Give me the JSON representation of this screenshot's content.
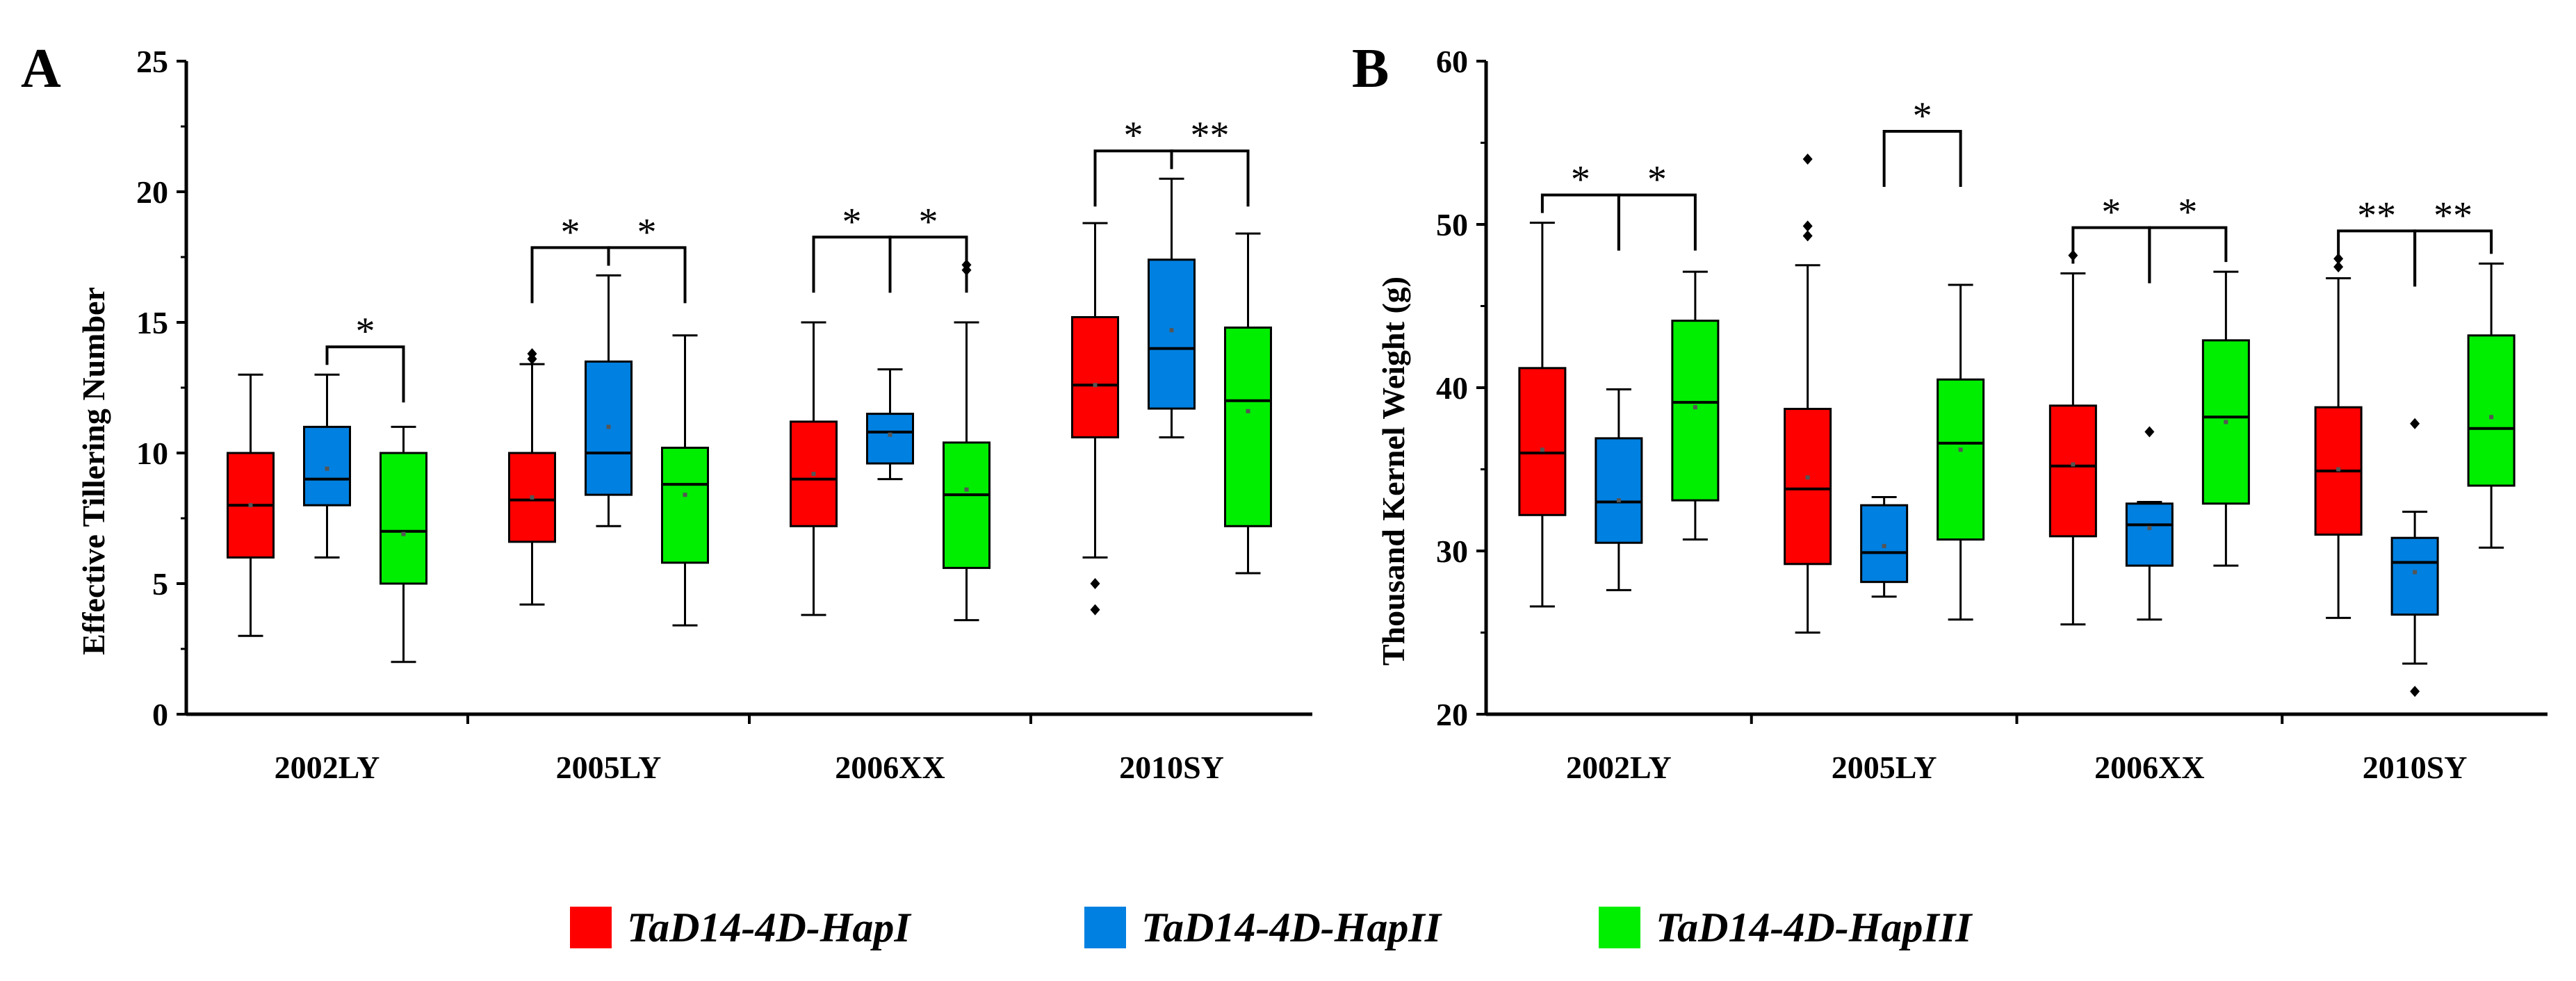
{
  "colors": {
    "hap1": "#ff0000",
    "hap2": "#0080e0",
    "hap3": "#00ee00"
  },
  "legend": [
    {
      "label": "TaD14-4D-HapI",
      "color": "#ff0000"
    },
    {
      "label": "TaD14-4D-HapII",
      "color": "#0080e0"
    },
    {
      "label": "TaD14-4D-HapIII",
      "color": "#00ee00"
    }
  ],
  "chart_data": [
    {
      "panel": "A",
      "type": "box",
      "ylabel": "Effective Tillering Number",
      "ylim": [
        0,
        25
      ],
      "yticks": [
        0,
        5,
        10,
        15,
        20,
        25
      ],
      "categories": [
        "2002LY",
        "2005LY",
        "2006XX",
        "2010SY"
      ],
      "series_names": [
        "TaD14-4D-HapI",
        "TaD14-4D-HapII",
        "TaD14-4D-HapIII"
      ],
      "boxes": [
        [
          {
            "min": 3,
            "q1": 6,
            "median": 8,
            "q3": 10,
            "max": 13,
            "mean": 8,
            "outliers": []
          },
          {
            "min": 6,
            "q1": 8,
            "median": 9,
            "q3": 11,
            "max": 13,
            "mean": 9.4,
            "outliers": []
          },
          {
            "min": 2,
            "q1": 5,
            "median": 7,
            "q3": 10,
            "max": 11,
            "mean": 6.9,
            "outliers": []
          }
        ],
        [
          {
            "min": 4.2,
            "q1": 6.6,
            "median": 8.2,
            "q3": 10,
            "max": 13.4,
            "mean": 8.3,
            "outliers": [
              13.8,
              13.6
            ]
          },
          {
            "min": 7.2,
            "q1": 8.4,
            "median": 10,
            "q3": 13.5,
            "max": 16.8,
            "mean": 11,
            "outliers": []
          },
          {
            "min": 3.4,
            "q1": 5.8,
            "median": 8.8,
            "q3": 10.2,
            "max": 14.5,
            "mean": 8.4,
            "outliers": []
          }
        ],
        [
          {
            "min": 3.8,
            "q1": 7.2,
            "median": 9,
            "q3": 11.2,
            "max": 15,
            "mean": 9.2,
            "outliers": []
          },
          {
            "min": 9,
            "q1": 9.6,
            "median": 10.8,
            "q3": 11.5,
            "max": 13.2,
            "mean": 10.7,
            "outliers": []
          },
          {
            "min": 3.6,
            "q1": 5.6,
            "median": 8.4,
            "q3": 10.4,
            "max": 15,
            "mean": 8.6,
            "outliers": [
              17.2,
              17
            ]
          }
        ],
        [
          {
            "min": 6,
            "q1": 10.6,
            "median": 12.6,
            "q3": 15.2,
            "max": 18.8,
            "mean": 12.6,
            "outliers": [
              5,
              4
            ]
          },
          {
            "min": 10.6,
            "q1": 11.7,
            "median": 14,
            "q3": 17.4,
            "max": 20.5,
            "mean": 14.7,
            "outliers": []
          },
          {
            "min": 5.4,
            "q1": 7.2,
            "median": 12,
            "q3": 14.8,
            "max": 18.4,
            "mean": 11.6,
            "outliers": []
          }
        ]
      ],
      "significance": [
        {
          "category": 0,
          "from": 1,
          "to": 2,
          "label": "*"
        },
        {
          "category": 1,
          "from": 0,
          "to": 1,
          "label": "*"
        },
        {
          "category": 1,
          "from": 1,
          "to": 2,
          "label": "*"
        },
        {
          "category": 2,
          "from": 0,
          "to": 1,
          "label": "*"
        },
        {
          "category": 2,
          "from": 1,
          "to": 2,
          "label": "*"
        },
        {
          "category": 3,
          "from": 0,
          "to": 1,
          "label": "*"
        },
        {
          "category": 3,
          "from": 1,
          "to": 2,
          "label": "**"
        }
      ]
    },
    {
      "panel": "B",
      "type": "box",
      "ylabel": "Thousand Kernel Weight (g)",
      "ylim": [
        20,
        60
      ],
      "yticks": [
        20,
        30,
        40,
        50,
        60
      ],
      "categories": [
        "2002LY",
        "2005LY",
        "2006XX",
        "2010SY"
      ],
      "series_names": [
        "TaD14-4D-HapI",
        "TaD14-4D-HapII",
        "TaD14-4D-HapIII"
      ],
      "boxes": [
        [
          {
            "min": 26.6,
            "q1": 32.2,
            "median": 36,
            "q3": 41.2,
            "max": 50.1,
            "mean": 36.2,
            "outliers": []
          },
          {
            "min": 27.6,
            "q1": 30.5,
            "median": 33,
            "q3": 36.9,
            "max": 39.9,
            "mean": 33.1,
            "outliers": []
          },
          {
            "min": 30.7,
            "q1": 33.1,
            "median": 39.1,
            "q3": 44.1,
            "max": 47.1,
            "mean": 38.8,
            "outliers": []
          }
        ],
        [
          {
            "min": 25,
            "q1": 29.2,
            "median": 33.8,
            "q3": 38.7,
            "max": 47.5,
            "mean": 34.5,
            "outliers": [
              54,
              49.9,
              49.3
            ]
          },
          {
            "min": 27.2,
            "q1": 28.1,
            "median": 29.9,
            "q3": 32.8,
            "max": 33.3,
            "mean": 30.3,
            "outliers": []
          },
          {
            "min": 25.8,
            "q1": 30.7,
            "median": 36.6,
            "q3": 40.5,
            "max": 46.3,
            "mean": 36.2,
            "outliers": []
          }
        ],
        [
          {
            "min": 25.5,
            "q1": 30.9,
            "median": 35.2,
            "q3": 38.9,
            "max": 47,
            "mean": 35.3,
            "outliers": [
              48.1
            ]
          },
          {
            "min": 25.8,
            "q1": 29.1,
            "median": 31.6,
            "q3": 32.9,
            "max": 33,
            "mean": 31.4,
            "outliers": [
              37.3
            ]
          },
          {
            "min": 29.1,
            "q1": 32.9,
            "median": 38.2,
            "q3": 42.9,
            "max": 47.1,
            "mean": 37.9,
            "outliers": []
          }
        ],
        [
          {
            "min": 25.9,
            "q1": 31,
            "median": 34.9,
            "q3": 38.8,
            "max": 46.7,
            "mean": 35,
            "outliers": [
              47.9,
              47.4
            ]
          },
          {
            "min": 23.1,
            "q1": 26.1,
            "median": 29.3,
            "q3": 30.8,
            "max": 32.4,
            "mean": 28.7,
            "outliers": [
              37.8,
              21.4
            ]
          },
          {
            "min": 30.2,
            "q1": 34,
            "median": 37.5,
            "q3": 43.2,
            "max": 47.6,
            "mean": 38.2,
            "outliers": []
          }
        ]
      ],
      "significance": [
        {
          "category": 0,
          "from": 0,
          "to": 1,
          "label": "*"
        },
        {
          "category": 0,
          "from": 1,
          "to": 2,
          "label": "*"
        },
        {
          "category": 1,
          "from": 1,
          "to": 2,
          "label": "*"
        },
        {
          "category": 2,
          "from": 0,
          "to": 1,
          "label": "*"
        },
        {
          "category": 2,
          "from": 1,
          "to": 2,
          "label": "*"
        },
        {
          "category": 3,
          "from": 0,
          "to": 1,
          "label": "**"
        },
        {
          "category": 3,
          "from": 1,
          "to": 2,
          "label": "**"
        }
      ]
    }
  ]
}
